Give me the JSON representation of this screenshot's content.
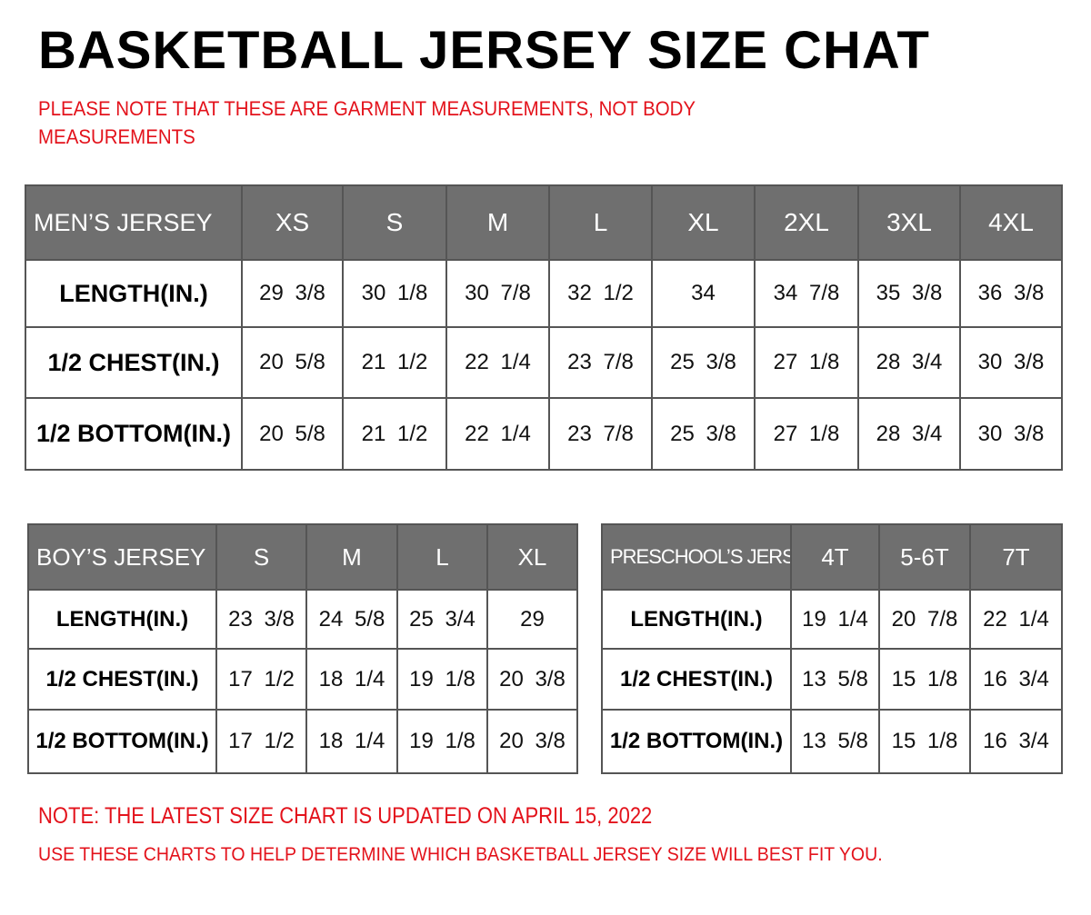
{
  "title": "BASKETBALL JERSEY SIZE CHAT",
  "note": "PLEASE NOTE THAT THESE ARE GARMENT MEASUREMENTS, NOT BODY MEASUREMENTS",
  "footer": {
    "updated": "NOTE: THE LATEST SIZE CHART IS UPDATED ON APRIL 15, 2022",
    "hint": "USE THESE CHARTS TO HELP DETERMINE WHICH  BASKETBALL JERSEY  SIZE WILL BEST FIT YOU."
  },
  "colors": {
    "header_bg": "#6f6f6f",
    "note_red": "#e3121b"
  },
  "tables": {
    "mens": {
      "label": "MEN’S JERSEY",
      "sizes": [
        "XS",
        "S",
        "M",
        "L",
        "XL",
        "2XL",
        "3XL",
        "4XL"
      ],
      "rows": [
        {
          "label": "LENGTH(IN.)",
          "values": [
            "29 3/8",
            "30 1/8",
            "30 7/8",
            "32 1/2",
            "34",
            "34 7/8",
            "35 3/8",
            "36 3/8"
          ]
        },
        {
          "label": "1/2 CHEST(IN.)",
          "values": [
            "20 5/8",
            "21 1/2",
            "22 1/4",
            "23 7/8",
            "25 3/8",
            "27 1/8",
            "28 3/4",
            "30 3/8"
          ]
        },
        {
          "label": "1/2 BOTTOM(IN.)",
          "values": [
            "20 5/8",
            "21 1/2",
            "22 1/4",
            "23 7/8",
            "25 3/8",
            "27 1/8",
            "28 3/4",
            "30 3/8"
          ]
        }
      ]
    },
    "boys": {
      "label": "BOY’S JERSEY",
      "sizes": [
        "S",
        "M",
        "L",
        "XL"
      ],
      "rows": [
        {
          "label": "LENGTH(IN.)",
          "values": [
            "23 3/8",
            "24 5/8",
            "25 3/4",
            "29"
          ]
        },
        {
          "label": "1/2 CHEST(IN.)",
          "values": [
            "17 1/2",
            "18 1/4",
            "19 1/8",
            "20 3/8"
          ]
        },
        {
          "label": "1/2 BOTTOM(IN.)",
          "values": [
            "17 1/2",
            "18 1/4",
            "19 1/8",
            "20 3/8"
          ]
        }
      ]
    },
    "preschool": {
      "label": "PRESCHOOL’S JERSEY",
      "sizes": [
        "4T",
        "5-6T",
        "7T"
      ],
      "rows": [
        {
          "label": "LENGTH(IN.)",
          "values": [
            "19 1/4",
            "20 7/8",
            "22 1/4"
          ]
        },
        {
          "label": "1/2 CHEST(IN.)",
          "values": [
            "13 5/8",
            "15 1/8",
            "16 3/4"
          ]
        },
        {
          "label": "1/2 BOTTOM(IN.)",
          "values": [
            "13 5/8",
            "15 1/8",
            "16 3/4"
          ]
        }
      ]
    }
  }
}
